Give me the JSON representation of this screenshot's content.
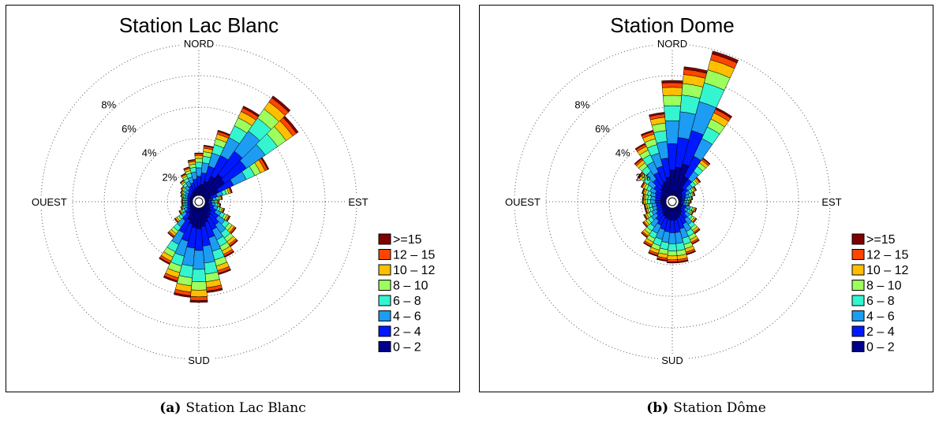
{
  "chart_data": [
    {
      "type": "wind-rose",
      "title": "Station Lac Blanc",
      "caption_letter": "(a)",
      "caption_text": "Station Lac Blanc",
      "directions": {
        "north": "NORD",
        "east": "EST",
        "south": "SUD",
        "west": "OUEST"
      },
      "radial_ticks": [
        "2%",
        "4%",
        "6%",
        "8%"
      ],
      "radial_max": 10,
      "sectors": 36,
      "speed_classes": [
        ">=15",
        "12 – 15",
        "10 – 12",
        "8 – 10",
        "6 – 8",
        "4 – 6",
        "2 – 4",
        "0 – 2"
      ],
      "colors": [
        "#7f0000",
        "#ff4500",
        "#ffbf00",
        "#9cff5e",
        "#34f5d0",
        "#1c9cf2",
        "#0018ff",
        "#000088"
      ],
      "legend_location": "bottom-right",
      "legend_order": "descending",
      "data": [
        {
          "dir": 0,
          "total": 2.7
        },
        {
          "dir": 10,
          "total": 3.2
        },
        {
          "dir": 20,
          "total": 4.3
        },
        {
          "dir": 30,
          "total": 6.3
        },
        {
          "dir": 40,
          "total": 7.8
        },
        {
          "dir": 50,
          "total": 7.3
        },
        {
          "dir": 60,
          "total": 4.5
        },
        {
          "dir": 70,
          "total": 1.8
        },
        {
          "dir": 80,
          "total": 1.1
        },
        {
          "dir": 90,
          "total": 0.9
        },
        {
          "dir": 100,
          "total": 1.0
        },
        {
          "dir": 110,
          "total": 1.3
        },
        {
          "dir": 120,
          "total": 1.8
        },
        {
          "dir": 130,
          "total": 2.5
        },
        {
          "dir": 140,
          "total": 3.1
        },
        {
          "dir": 150,
          "total": 3.5
        },
        {
          "dir": 160,
          "total": 4.4
        },
        {
          "dir": 170,
          "total": 5.4
        },
        {
          "dir": 180,
          "total": 6.0
        },
        {
          "dir": 190,
          "total": 5.7
        },
        {
          "dir": 200,
          "total": 4.9
        },
        {
          "dir": 210,
          "total": 4.0
        },
        {
          "dir": 220,
          "total": 2.4
        },
        {
          "dir": 230,
          "total": 1.5
        },
        {
          "dir": 240,
          "total": 1.0
        },
        {
          "dir": 250,
          "total": 0.8
        },
        {
          "dir": 260,
          "total": 0.7
        },
        {
          "dir": 270,
          "total": 0.7
        },
        {
          "dir": 280,
          "total": 0.7
        },
        {
          "dir": 290,
          "total": 0.8
        },
        {
          "dir": 300,
          "total": 0.9
        },
        {
          "dir": 310,
          "total": 1.0
        },
        {
          "dir": 320,
          "total": 1.3
        },
        {
          "dir": 330,
          "total": 1.6
        },
        {
          "dir": 340,
          "total": 1.9
        },
        {
          "dir": 350,
          "total": 2.3
        }
      ]
    },
    {
      "type": "wind-rose",
      "title": "Station Dome",
      "caption_letter": "(b)",
      "caption_text": "Station Dôme",
      "directions": {
        "north": "NORD",
        "east": "EST",
        "south": "SUD",
        "west": "OUEST"
      },
      "radial_ticks": [
        "2%",
        "4%",
        "6%",
        "8%"
      ],
      "radial_max": 10,
      "sectors": 36,
      "speed_classes": [
        ">=15",
        "12 – 15",
        "10 – 12",
        "8 – 10",
        "6 – 8",
        "4 – 6",
        "2 – 4",
        "0 – 2"
      ],
      "colors": [
        "#7f0000",
        "#ff4500",
        "#ffbf00",
        "#9cff5e",
        "#34f5d0",
        "#1c9cf2",
        "#0018ff",
        "#000088"
      ],
      "legend_location": "bottom-right",
      "legend_order": "descending",
      "data": [
        {
          "dir": 0,
          "total": 7.3
        },
        {
          "dir": 10,
          "total": 8.2
        },
        {
          "dir": 20,
          "total": 9.5
        },
        {
          "dir": 30,
          "total": 6.2
        },
        {
          "dir": 40,
          "total": 3.0
        },
        {
          "dir": 50,
          "total": 1.8
        },
        {
          "dir": 60,
          "total": 1.3
        },
        {
          "dir": 70,
          "total": 1.1
        },
        {
          "dir": 80,
          "total": 0.9
        },
        {
          "dir": 90,
          "total": 0.8
        },
        {
          "dir": 100,
          "total": 0.7
        },
        {
          "dir": 110,
          "total": 1.2
        },
        {
          "dir": 120,
          "total": 1.1
        },
        {
          "dir": 130,
          "total": 1.5
        },
        {
          "dir": 140,
          "total": 2.1
        },
        {
          "dir": 150,
          "total": 2.6
        },
        {
          "dir": 160,
          "total": 3.1
        },
        {
          "dir": 170,
          "total": 3.5
        },
        {
          "dir": 180,
          "total": 3.5
        },
        {
          "dir": 190,
          "total": 3.4
        },
        {
          "dir": 200,
          "total": 3.2
        },
        {
          "dir": 210,
          "total": 2.8
        },
        {
          "dir": 220,
          "total": 2.4
        },
        {
          "dir": 230,
          "total": 1.9
        },
        {
          "dir": 240,
          "total": 1.6
        },
        {
          "dir": 250,
          "total": 1.4
        },
        {
          "dir": 260,
          "total": 1.4
        },
        {
          "dir": 270,
          "total": 1.5
        },
        {
          "dir": 280,
          "total": 1.5
        },
        {
          "dir": 290,
          "total": 1.6
        },
        {
          "dir": 300,
          "total": 1.8
        },
        {
          "dir": 310,
          "total": 2.3
        },
        {
          "dir": 320,
          "total": 3.0
        },
        {
          "dir": 330,
          "total": 3.7
        },
        {
          "dir": 340,
          "total": 4.3
        },
        {
          "dir": 350,
          "total": 5.3
        }
      ]
    }
  ]
}
